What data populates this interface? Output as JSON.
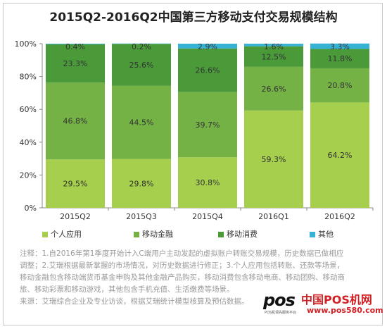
{
  "chart_data": {
    "type": "bar",
    "stacked": true,
    "title": "2015Q2-2016Q2中国第三方移动支付交易规模结构",
    "categories": [
      "2015Q2",
      "2015Q3",
      "2015Q4",
      "2016Q1",
      "2016Q2"
    ],
    "ylim": [
      0,
      100
    ],
    "yticks": [
      "0%",
      "20%",
      "40%",
      "60%",
      "80%",
      "100%"
    ],
    "grid": false,
    "legend_position": "bottom",
    "series": [
      {
        "name": "个人应用",
        "color": "#a5cf4c",
        "values": [
          29.5,
          29.8,
          30.8,
          59.3,
          64.2
        ],
        "labels": [
          "29.5%",
          "29.8%",
          "30.8%",
          "59.3%",
          "64.2%"
        ]
      },
      {
        "name": "移动金融",
        "color": "#74b246",
        "values": [
          46.8,
          44.5,
          39.7,
          26.6,
          20.8
        ],
        "labels": [
          "46.8%",
          "44.5%",
          "39.7%",
          "26.6%",
          "20.8%"
        ]
      },
      {
        "name": "移动消费",
        "color": "#4a9a3a",
        "values": [
          23.3,
          25.6,
          26.6,
          12.5,
          11.8
        ],
        "labels": [
          "23.3%",
          "25.6%",
          "26.6%",
          "12.5%",
          "11.8%"
        ]
      },
      {
        "name": "其他",
        "color": "#36b3d4",
        "values": [
          0.4,
          0.2,
          2.9,
          1.6,
          3.3
        ],
        "labels": [
          "0.4%",
          "0.2%",
          "2.9%",
          "1.6%",
          "3.3%"
        ]
      }
    ]
  },
  "notes": [
    "注释：1.自2016年第1季度开始计入C端用户主动发起的虚拟账户转账交易规模，历史数据已做相应",
    "调整；2.艾瑞根据最新掌握的市场情况，对历史数据进行修正；3.个人应用包括转账、还款等场景，",
    "移动金融包含移动端货币基金申购及其他金融产品购买，移动消费包含移动电商、移动团购、移动商",
    "旅、移动彩票和移动游戏，其他包含手机充值、生活缴费等场景。",
    "来源：艾瑞综合企业及专业访谈，根据艾瑞统计模型核算及预估数据。"
  ],
  "watermark": {
    "logo": "pos",
    "tagline": "POS机领先服务平台",
    "name": "中国POS机网",
    "url": "www.pos580.com",
    "color": "#d21f24"
  }
}
